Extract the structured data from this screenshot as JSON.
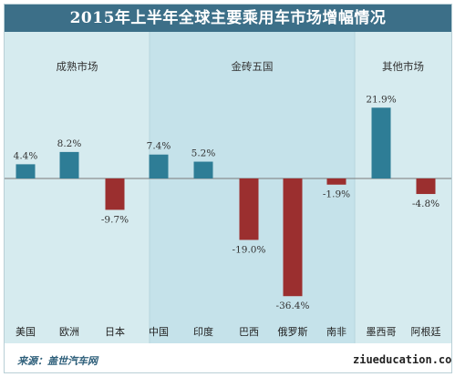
{
  "chart_data": {
    "type": "bar",
    "title": "2015年上半年全球主要乘用车市场增幅情况",
    "categories": [
      "美国",
      "欧洲",
      "日本",
      "中国",
      "印度",
      "巴西",
      "俄罗斯",
      "南非",
      "墨西哥",
      "阿根廷"
    ],
    "values": [
      4.4,
      8.2,
      -9.7,
      7.4,
      5.2,
      -19.0,
      -36.4,
      -1.9,
      21.9,
      -4.8
    ],
    "value_labels": [
      "4.4%",
      "8.2%",
      "-9.7%",
      "7.4%",
      "5.2%",
      "-19.0%",
      "-36.4%",
      "-1.9%",
      "21.9%",
      "-4.8%"
    ],
    "groups": [
      {
        "name": "成熟市场",
        "start": 0,
        "end": 2
      },
      {
        "name": "金砖五国",
        "start": 3,
        "end": 7
      },
      {
        "name": "其他市场",
        "start": 8,
        "end": 9
      }
    ],
    "ylim": [
      -38,
      24
    ],
    "grid": false,
    "legend": false
  },
  "colors": {
    "positive": "#2e7d96",
    "negative": "#9b2f2f",
    "title_bg": "#3c6f88",
    "panel_light": "#d6ebef",
    "panel_mid": "#c5e2ea"
  },
  "source": "来源：盖世汽车网",
  "watermark": "ziueducation.co"
}
